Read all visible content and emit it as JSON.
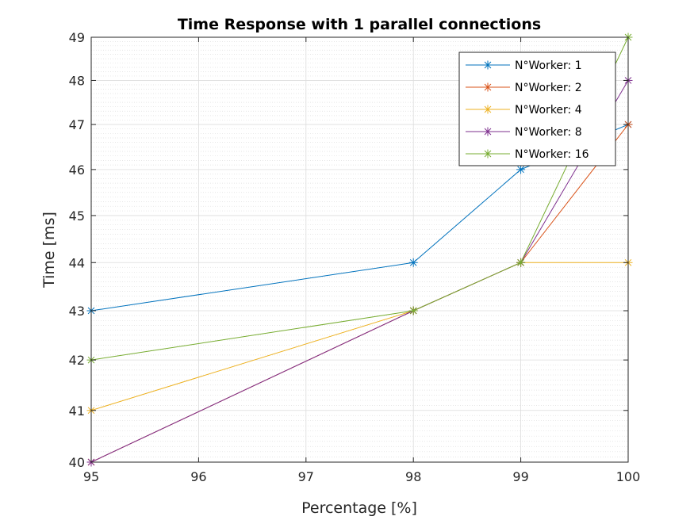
{
  "chart_data": {
    "type": "line",
    "title": "Time Response with 1 parallel connections",
    "xlabel": "Percentage [%]",
    "ylabel": "Time [ms]",
    "categories": [
      "95",
      "96",
      "97",
      "98",
      "99",
      "100"
    ],
    "ylim": [
      40,
      49
    ],
    "yticks": [
      "40",
      "41",
      "42",
      "43",
      "44",
      "45",
      "46",
      "47",
      "48",
      "49"
    ],
    "y_scale": "log",
    "grid": true,
    "legend_position": "top-right",
    "series": [
      {
        "name": "N°Worker: 1",
        "color": "#0072BD",
        "points": [
          {
            "x": "95",
            "y": 43
          },
          {
            "x": "98",
            "y": 44
          },
          {
            "x": "99",
            "y": 46
          },
          {
            "x": "100",
            "y": 47
          }
        ]
      },
      {
        "name": "N°Worker: 2",
        "color": "#D95319",
        "points": [
          {
            "x": "95",
            "y": 40
          },
          {
            "x": "98",
            "y": 43
          },
          {
            "x": "99",
            "y": 44
          },
          {
            "x": "100",
            "y": 47
          }
        ]
      },
      {
        "name": "N°Worker: 4",
        "color": "#EDB120",
        "points": [
          {
            "x": "95",
            "y": 41
          },
          {
            "x": "98",
            "y": 43
          },
          {
            "x": "99",
            "y": 44
          },
          {
            "x": "100",
            "y": 44
          }
        ]
      },
      {
        "name": "N°Worker: 8",
        "color": "#7E2F8E",
        "points": [
          {
            "x": "95",
            "y": 40
          },
          {
            "x": "98",
            "y": 43
          },
          {
            "x": "99",
            "y": 44
          },
          {
            "x": "100",
            "y": 48
          }
        ]
      },
      {
        "name": "N°Worker: 16",
        "color": "#77AC30",
        "points": [
          {
            "x": "95",
            "y": 42
          },
          {
            "x": "98",
            "y": 43
          },
          {
            "x": "99",
            "y": 44
          },
          {
            "x": "100",
            "y": 49
          }
        ]
      }
    ]
  }
}
